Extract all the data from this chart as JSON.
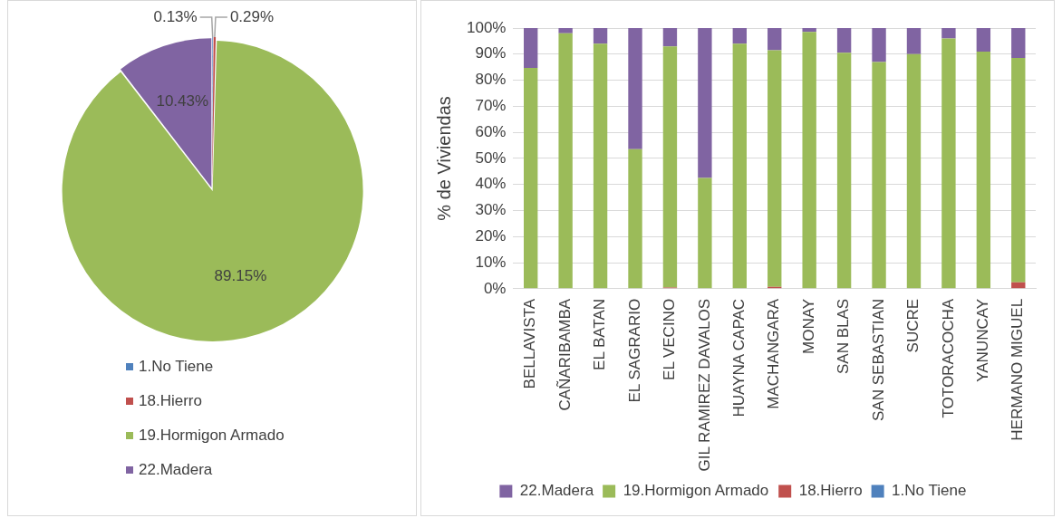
{
  "chart_data": [
    {
      "type": "pie",
      "categories": [
        "1.No Tiene",
        "18.Hierro",
        "19.Hormigon Armado",
        "22.Madera"
      ],
      "values": [
        0.13,
        0.29,
        89.15,
        10.43
      ],
      "colors": [
        "#4f81bd",
        "#c0504d",
        "#9bbb59",
        "#8064a2"
      ],
      "value_labels": [
        "0.13%",
        "0.29%",
        "89.15%",
        "10.43%"
      ],
      "legend": "bottom"
    },
    {
      "type": "bar",
      "stacked": true,
      "ylabel": "% de Viviendas",
      "categories": [
        "BELLAVISTA",
        "CAÑARIBAMBA",
        "EL BATAN",
        "EL SAGRARIO",
        "EL VECINO",
        "GIL RAMIREZ DAVALOS",
        "HUAYNA CAPAC",
        "MACHANGARA",
        "MONAY",
        "SAN BLAS",
        "SAN SEBASTIAN",
        "SUCRE",
        "TOTORACOCHA",
        "YANUNCAY",
        "HERMANO MIGUEL"
      ],
      "series": [
        {
          "name": "1.No Tiene",
          "color": "#4f81bd",
          "values": [
            0,
            0,
            0,
            0,
            0,
            0,
            0,
            0,
            0,
            0,
            0,
            0,
            0,
            0,
            0
          ]
        },
        {
          "name": "18.Hierro",
          "color": "#c0504d",
          "values": [
            0,
            0,
            0,
            0,
            0.5,
            0,
            0,
            0.7,
            0,
            0,
            0,
            0,
            0,
            0,
            2.5
          ]
        },
        {
          "name": "19.Hormigon Armado",
          "color": "#9bbb59",
          "values": [
            84.7,
            98,
            94,
            53.5,
            92.5,
            42.5,
            94,
            90.8,
            98.5,
            90.5,
            87,
            90,
            96,
            91,
            86
          ]
        },
        {
          "name": "22.Madera",
          "color": "#8064a2",
          "values": [
            15.3,
            2,
            6,
            46.5,
            7,
            57.5,
            6,
            8.5,
            1.5,
            9.5,
            13,
            10,
            4,
            9,
            11.5
          ]
        }
      ],
      "ylim": [
        0,
        100
      ],
      "yticks": [
        {
          "value": 0,
          "label": "0%"
        },
        {
          "value": 10,
          "label": "10%"
        },
        {
          "value": 20,
          "label": "20%"
        },
        {
          "value": 30,
          "label": "30%"
        },
        {
          "value": 40,
          "label": "40%"
        },
        {
          "value": 50,
          "label": "50%"
        },
        {
          "value": 60,
          "label": "60%"
        },
        {
          "value": 70,
          "label": "70%"
        },
        {
          "value": 80,
          "label": "80%"
        },
        {
          "value": 90,
          "label": "90%"
        },
        {
          "value": 100,
          "label": "100%"
        }
      ],
      "grid": "y",
      "legend": "bottom"
    }
  ]
}
